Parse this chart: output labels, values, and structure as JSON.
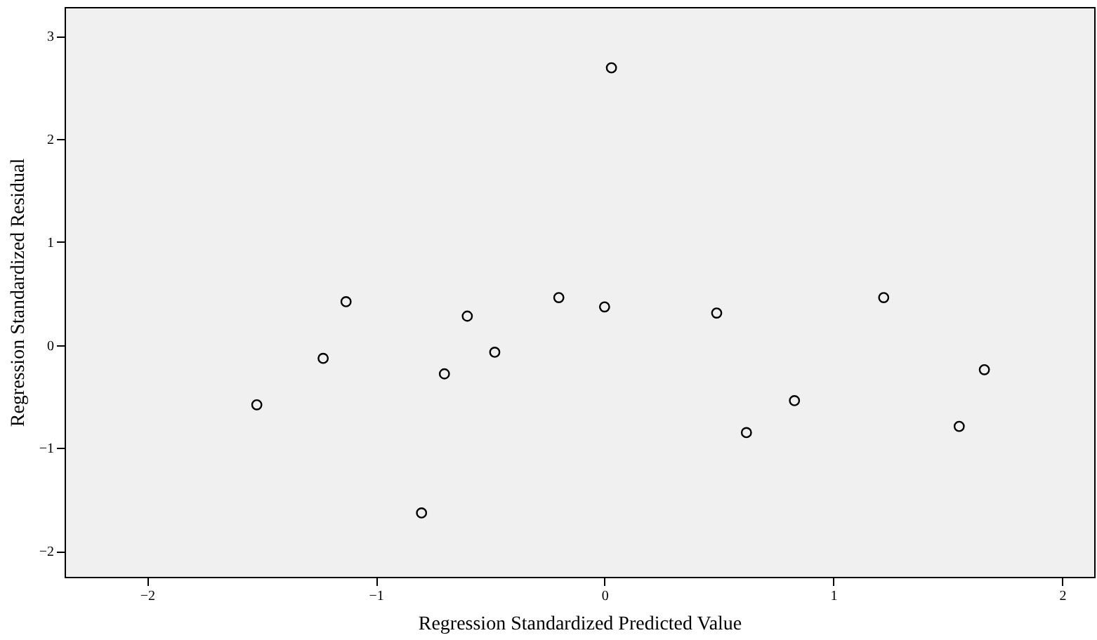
{
  "chart_data": {
    "type": "scatter",
    "xlabel": "Regression Standardized Predicted Value",
    "ylabel": "Regression Standardized Residual",
    "x": [
      -1.52,
      -1.23,
      -1.13,
      -0.8,
      -0.7,
      -0.6,
      -0.48,
      -0.2,
      0.0,
      0.03,
      0.49,
      0.62,
      0.83,
      1.22,
      1.55,
      1.66
    ],
    "series": [
      {
        "color": "#000000",
        "values": [
          -0.58,
          -0.13,
          0.42,
          -1.63,
          -0.28,
          0.28,
          -0.07,
          0.46,
          0.37,
          2.69,
          0.31,
          -0.85,
          -0.54,
          0.46,
          -0.79,
          -0.24
        ]
      }
    ],
    "xlim": [
      -2.36,
      2.14
    ],
    "ylim": [
      -2.25,
      3.28
    ],
    "xticks": [
      -2,
      -1,
      0,
      1,
      2
    ],
    "yticks": [
      -2,
      -1,
      0,
      1,
      2,
      3
    ],
    "marker": "circle",
    "grid": false
  }
}
